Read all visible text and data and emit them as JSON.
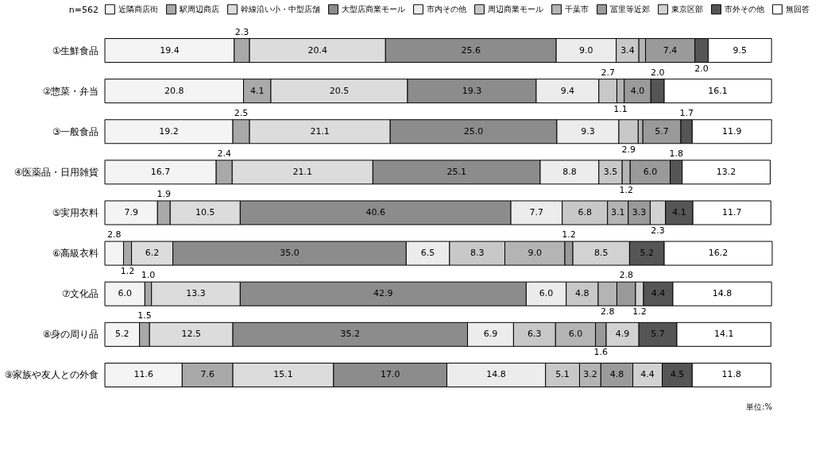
{
  "chart_data": {
    "type": "bar",
    "orientation": "horizontal",
    "stacked": true,
    "tick_labels": false,
    "legend": "top",
    "annotations": [
      "n=562",
      "単位:%"
    ],
    "categories": [
      "①生鮮食品",
      "②惣菜・弁当",
      "③一般食品",
      "④医薬品・日用雑貨",
      "⑤実用衣料",
      "⑥高級衣料",
      "⑦文化品",
      "⑧身の周り品",
      "⑨家族や友人との外食"
    ],
    "series": [
      {
        "name": "近隣商店街",
        "color": "#f4f4f4",
        "values": [
          19.4,
          20.8,
          19.2,
          16.7,
          7.9,
          2.8,
          6.0,
          5.2,
          11.6
        ],
        "value_labels": [
          "19.4",
          "20.8",
          "19.2",
          "16.7",
          "7.9",
          "2.8",
          "6.0",
          "5.2",
          "11.6"
        ]
      },
      {
        "name": "駅周辺商店",
        "color": "#a9a9a9",
        "values": [
          2.3,
          4.1,
          2.5,
          2.4,
          1.9,
          1.2,
          1.0,
          1.5,
          7.6
        ],
        "value_labels": [
          "2.3",
          "4.1",
          "2.5",
          "2.4",
          "1.9",
          "1.2",
          "1.0",
          "1.5",
          "7.6"
        ]
      },
      {
        "name": "幹線沿い小・中型店舗",
        "color": "#dcdcdc",
        "values": [
          20.4,
          20.5,
          21.1,
          21.1,
          10.5,
          6.2,
          13.3,
          12.5,
          15.1
        ],
        "value_labels": [
          "20.4",
          "20.5",
          "21.1",
          "21.1",
          "10.5",
          "6.2",
          "13.3",
          "12.5",
          "15.1"
        ]
      },
      {
        "name": "大型店商業モール",
        "color": "#8c8c8c",
        "values": [
          25.6,
          19.3,
          25.0,
          25.1,
          40.6,
          35.0,
          42.9,
          35.2,
          17.0
        ],
        "value_labels": [
          "25.6",
          "19.3",
          "25.0",
          "25.1",
          "40.6",
          "35.0",
          "42.9",
          "35.2",
          "17.0"
        ]
      },
      {
        "name": "市内その他",
        "color": "#ececec",
        "values": [
          9.0,
          9.4,
          9.3,
          8.8,
          7.7,
          6.5,
          6.0,
          6.9,
          14.8
        ],
        "value_labels": [
          "9.0",
          "9.4",
          "9.3",
          "8.8",
          "7.7",
          "6.5",
          "6.0",
          "6.9",
          "14.8"
        ]
      },
      {
        "name": "周辺商業モール",
        "color": "#c8c8c8",
        "values": [
          3.4,
          2.7,
          2.9,
          3.5,
          6.8,
          8.3,
          4.8,
          6.3,
          5.1
        ],
        "value_labels": [
          "3.4",
          "2.7",
          "2.9",
          "3.5",
          "6.8",
          "8.3",
          "4.8",
          "6.3",
          "5.1"
        ]
      },
      {
        "name": "千葉市",
        "color": "#b4b4b4",
        "values": [
          1.0,
          1.1,
          0.7,
          1.2,
          3.1,
          9.0,
          2.8,
          6.0,
          3.2
        ],
        "value_labels": [
          null,
          "1.1",
          null,
          "1.2",
          "3.1",
          "9.0",
          "2.8",
          "6.0",
          "3.2"
        ]
      },
      {
        "name": "冨里等近郊",
        "color": "#9a9a9a",
        "values": [
          7.4,
          4.0,
          5.7,
          6.0,
          3.3,
          1.2,
          2.8,
          1.6,
          4.8
        ],
        "value_labels": [
          "7.4",
          "4.0",
          "5.7",
          "6.0",
          "3.3",
          "1.2",
          "2.8",
          "1.6",
          "4.8"
        ]
      },
      {
        "name": "東京区部",
        "color": "#d2d2d2",
        "values": [
          null,
          null,
          null,
          null,
          2.3,
          8.5,
          1.2,
          4.9,
          4.4
        ],
        "value_labels": [
          null,
          null,
          null,
          null,
          "2.3",
          "8.5",
          "1.2",
          "4.9",
          "4.4"
        ]
      },
      {
        "name": "市外その他",
        "color": "#555555",
        "values": [
          2.0,
          2.0,
          1.7,
          1.8,
          4.1,
          5.2,
          4.4,
          5.7,
          4.5
        ],
        "value_labels": [
          "2.0",
          "2.0",
          "1.7",
          "1.8",
          "4.1",
          "5.2",
          "4.4",
          "5.7",
          "4.5"
        ]
      },
      {
        "name": "無回答",
        "color": "#ffffff",
        "values": [
          9.5,
          16.1,
          11.9,
          13.2,
          11.7,
          16.2,
          14.8,
          14.1,
          11.8
        ],
        "value_labels": [
          "9.5",
          "16.1",
          "11.9",
          "13.2",
          "11.7",
          "16.2",
          "14.8",
          "14.1",
          "11.8"
        ]
      }
    ]
  }
}
